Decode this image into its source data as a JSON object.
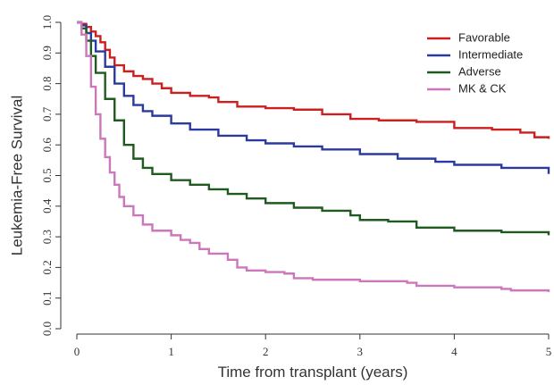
{
  "chart_data": {
    "type": "line",
    "step": true,
    "xlabel": "Time from transplant (years)",
    "ylabel": "Leukemia-Free Survival",
    "xlim": [
      0,
      5
    ],
    "ylim": [
      0,
      1.0
    ],
    "x_ticks": [
      "0",
      "1",
      "2",
      "3",
      "4",
      "5"
    ],
    "y_ticks": [
      "0.0",
      "0.1",
      "0.2",
      "0.3",
      "0.4",
      "0.5",
      "0.6",
      "0.7",
      "0.8",
      "0.9",
      "1.0"
    ],
    "grid": false,
    "legend_position": "top-right",
    "series": [
      {
        "name": "Favorable",
        "color": "#cc1f1f",
        "points": [
          [
            0,
            1.0
          ],
          [
            0.05,
            0.995
          ],
          [
            0.1,
            0.985
          ],
          [
            0.15,
            0.97
          ],
          [
            0.2,
            0.955
          ],
          [
            0.25,
            0.935
          ],
          [
            0.3,
            0.91
          ],
          [
            0.35,
            0.885
          ],
          [
            0.4,
            0.86
          ],
          [
            0.5,
            0.84
          ],
          [
            0.6,
            0.825
          ],
          [
            0.7,
            0.815
          ],
          [
            0.8,
            0.8
          ],
          [
            0.9,
            0.785
          ],
          [
            1.0,
            0.77
          ],
          [
            1.2,
            0.76
          ],
          [
            1.4,
            0.755
          ],
          [
            1.5,
            0.74
          ],
          [
            1.7,
            0.725
          ],
          [
            2.0,
            0.72
          ],
          [
            2.3,
            0.715
          ],
          [
            2.6,
            0.7
          ],
          [
            2.9,
            0.685
          ],
          [
            3.2,
            0.68
          ],
          [
            3.6,
            0.675
          ],
          [
            4.0,
            0.655
          ],
          [
            4.4,
            0.65
          ],
          [
            4.7,
            0.64
          ],
          [
            4.85,
            0.625
          ],
          [
            5.0,
            0.62
          ]
        ]
      },
      {
        "name": "Intermediate",
        "color": "#2b3a9e",
        "points": [
          [
            0,
            1.0
          ],
          [
            0.05,
            0.99
          ],
          [
            0.1,
            0.965
          ],
          [
            0.15,
            0.94
          ],
          [
            0.2,
            0.905
          ],
          [
            0.3,
            0.855
          ],
          [
            0.4,
            0.8
          ],
          [
            0.5,
            0.76
          ],
          [
            0.6,
            0.73
          ],
          [
            0.7,
            0.71
          ],
          [
            0.8,
            0.695
          ],
          [
            1.0,
            0.67
          ],
          [
            1.2,
            0.65
          ],
          [
            1.5,
            0.63
          ],
          [
            1.8,
            0.615
          ],
          [
            2.0,
            0.605
          ],
          [
            2.3,
            0.595
          ],
          [
            2.6,
            0.585
          ],
          [
            3.0,
            0.57
          ],
          [
            3.4,
            0.555
          ],
          [
            3.8,
            0.545
          ],
          [
            4.0,
            0.535
          ],
          [
            4.5,
            0.525
          ],
          [
            5.0,
            0.505
          ]
        ]
      },
      {
        "name": "Adverse",
        "color": "#1f5a1f",
        "points": [
          [
            0,
            1.0
          ],
          [
            0.05,
            0.98
          ],
          [
            0.1,
            0.94
          ],
          [
            0.15,
            0.89
          ],
          [
            0.2,
            0.835
          ],
          [
            0.3,
            0.75
          ],
          [
            0.4,
            0.68
          ],
          [
            0.5,
            0.6
          ],
          [
            0.6,
            0.555
          ],
          [
            0.7,
            0.525
          ],
          [
            0.8,
            0.505
          ],
          [
            1.0,
            0.485
          ],
          [
            1.2,
            0.47
          ],
          [
            1.4,
            0.455
          ],
          [
            1.6,
            0.44
          ],
          [
            1.8,
            0.425
          ],
          [
            2.0,
            0.41
          ],
          [
            2.3,
            0.395
          ],
          [
            2.6,
            0.385
          ],
          [
            2.9,
            0.37
          ],
          [
            3.0,
            0.355
          ],
          [
            3.3,
            0.35
          ],
          [
            3.6,
            0.33
          ],
          [
            4.0,
            0.32
          ],
          [
            4.5,
            0.315
          ],
          [
            5.0,
            0.305
          ]
        ]
      },
      {
        "name": "MK & CK",
        "color": "#cc77bb",
        "points": [
          [
            0,
            1.0
          ],
          [
            0.05,
            0.96
          ],
          [
            0.1,
            0.89
          ],
          [
            0.15,
            0.79
          ],
          [
            0.2,
            0.7
          ],
          [
            0.25,
            0.62
          ],
          [
            0.3,
            0.56
          ],
          [
            0.35,
            0.51
          ],
          [
            0.4,
            0.47
          ],
          [
            0.45,
            0.43
          ],
          [
            0.5,
            0.4
          ],
          [
            0.6,
            0.37
          ],
          [
            0.7,
            0.34
          ],
          [
            0.8,
            0.32
          ],
          [
            1.0,
            0.305
          ],
          [
            1.1,
            0.29
          ],
          [
            1.2,
            0.28
          ],
          [
            1.3,
            0.26
          ],
          [
            1.4,
            0.245
          ],
          [
            1.6,
            0.225
          ],
          [
            1.7,
            0.2
          ],
          [
            1.8,
            0.19
          ],
          [
            2.0,
            0.185
          ],
          [
            2.2,
            0.18
          ],
          [
            2.3,
            0.165
          ],
          [
            2.5,
            0.16
          ],
          [
            3.0,
            0.155
          ],
          [
            3.5,
            0.15
          ],
          [
            3.6,
            0.14
          ],
          [
            4.0,
            0.135
          ],
          [
            4.5,
            0.13
          ],
          [
            4.6,
            0.125
          ],
          [
            5.0,
            0.12
          ]
        ]
      }
    ]
  }
}
